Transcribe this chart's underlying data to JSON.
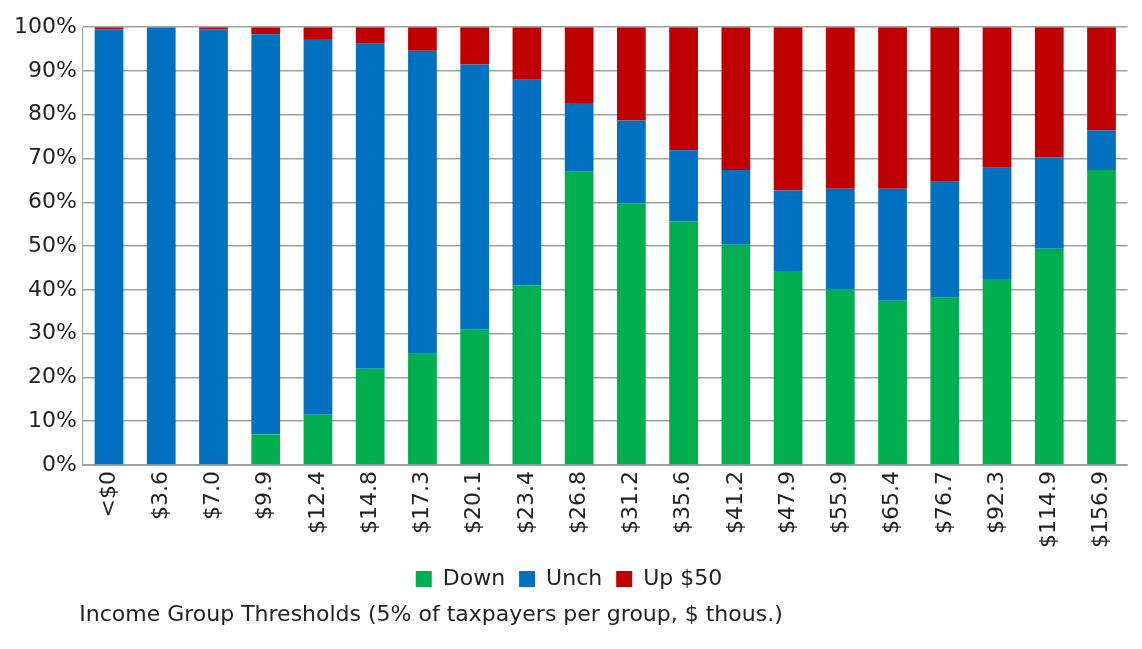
{
  "chart_data": {
    "type": "bar",
    "stacked": true,
    "xlabel": "Income Group Thresholds (5% of taxpayers per group, $ thous.)",
    "categories": [
      "<$0",
      "$3.6",
      "$7.0",
      "$9.9",
      "$12.4",
      "$14.8",
      "$17.3",
      "$20.1",
      "$23.4",
      "$26.8",
      "$31.2",
      "$35.6",
      "$41.2",
      "$47.9",
      "$55.9",
      "$65.4",
      "$76.7",
      "$92.3",
      "$114.9",
      "$156.9"
    ],
    "series": [
      {
        "name": "Down",
        "color": "#00b050",
        "values": [
          0,
          0,
          0,
          7,
          11.5,
          22,
          25.6,
          31,
          41,
          67,
          59.8,
          55.7,
          50.3,
          44.3,
          40.2,
          37.5,
          38.2,
          42.5,
          49.4,
          67.4
        ]
      },
      {
        "name": "Unch",
        "color": "#0070c0",
        "values": [
          99.5,
          100,
          99.5,
          91.4,
          85.8,
          74.2,
          69,
          60.5,
          47,
          15.7,
          18.9,
          16.2,
          17.1,
          18.4,
          22.9,
          25.6,
          26.5,
          25.4,
          20.9,
          9
        ]
      },
      {
        "name": "Up $50",
        "color": "#c00000",
        "values": [
          0.5,
          0,
          0.5,
          1.6,
          2.7,
          3.8,
          5.4,
          8.5,
          12,
          17.3,
          21.3,
          28.1,
          32.6,
          37.3,
          36.9,
          36.9,
          35.3,
          32.1,
          29.7,
          23.6
        ]
      }
    ],
    "ylim": [
      0,
      100
    ],
    "yticks": [
      {
        "value": 0,
        "label": "0%"
      },
      {
        "value": 10,
        "label": "10%"
      },
      {
        "value": 20,
        "label": "20%"
      },
      {
        "value": 30,
        "label": "30%"
      },
      {
        "value": 40,
        "label": "40%"
      },
      {
        "value": 50,
        "label": "50%"
      },
      {
        "value": 60,
        "label": "60%"
      },
      {
        "value": 70,
        "label": "70%"
      },
      {
        "value": 80,
        "label": "80%"
      },
      {
        "value": 90,
        "label": "90%"
      },
      {
        "value": 100,
        "label": "100%"
      }
    ],
    "grid": "y",
    "legend": "bottom"
  }
}
